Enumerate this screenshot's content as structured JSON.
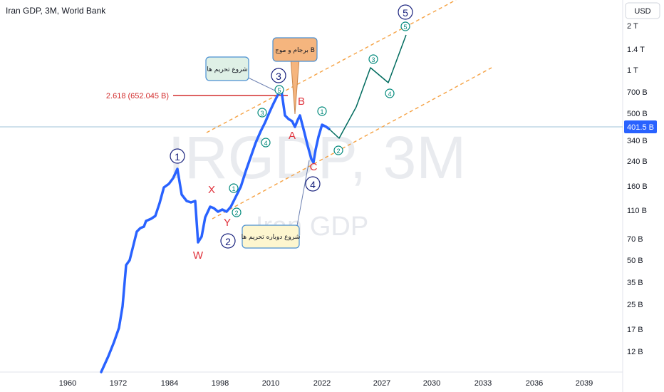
{
  "header": {
    "title": "Iran GDP, 3M, World Bank"
  },
  "currency_button": {
    "label": "USD"
  },
  "watermark": {
    "symbol": "IRGDP, 3M",
    "name": "Iran GDP"
  },
  "last_value_label": "401.5 B",
  "chart_data": {
    "type": "line",
    "title": "Iran GDP, 3M, World Bank",
    "x_ticks": [
      "1960",
      "1972",
      "1984",
      "1998",
      "2010",
      "2022",
      "2027",
      "2030",
      "2033",
      "2036",
      "2039"
    ],
    "y_ticks": [
      "2 T",
      "1.4 T",
      "1 T",
      "700 B",
      "500 B",
      "340 B",
      "240 B",
      "160 B",
      "110 B",
      "70 B",
      "50 B",
      "35 B",
      "25 B",
      "17 B",
      "12 B"
    ],
    "y_scale": "log",
    "last_value": "401.5 B",
    "fibonacci": {
      "label": "2.618 (652.045 B)"
    },
    "wave_labels": {
      "major": [
        "1",
        "2",
        "3",
        "4",
        "5"
      ],
      "minor": [
        "1",
        "2",
        "3",
        "4",
        "5"
      ],
      "correction": [
        "W",
        "X",
        "Y",
        "A",
        "B",
        "C"
      ]
    },
    "callouts": [
      {
        "text": "شروع تحریم ها"
      },
      {
        "text": "برجام و موج B"
      },
      {
        "text": "شروع دوباره تحریم ها"
      }
    ],
    "colors": {
      "price_line": "#2962ff",
      "projection": "#006b5e",
      "channel": "#f5a142",
      "fib": "#d32f2f",
      "wave_letters": "#e0323c",
      "major_circle": "#1a237e",
      "minor_circle": "#00897b"
    }
  }
}
